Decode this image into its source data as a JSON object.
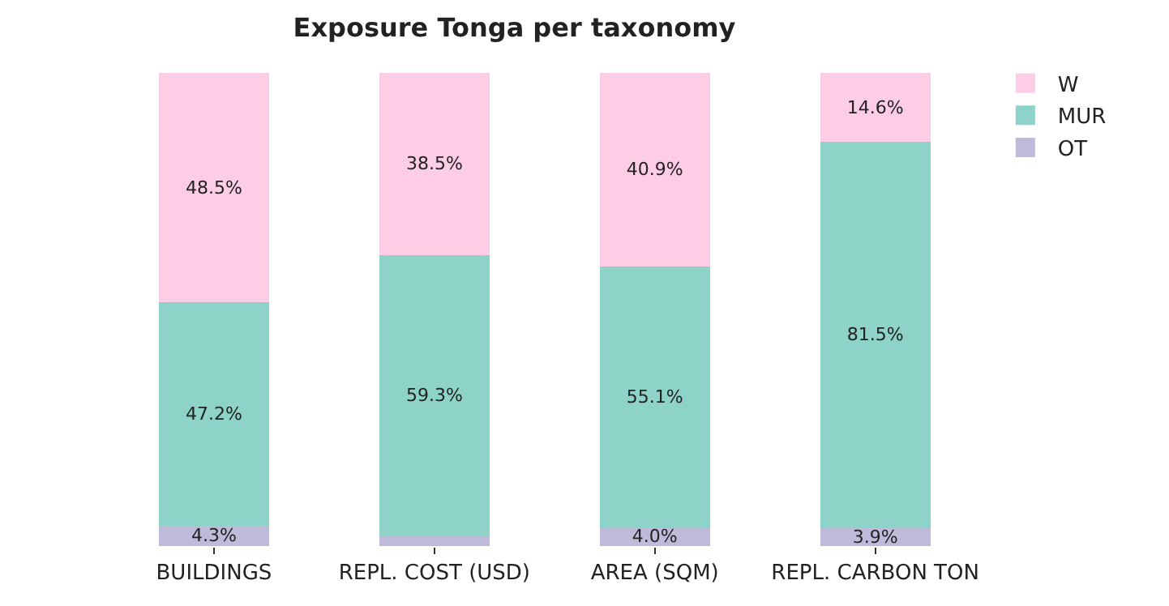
{
  "chart_data": {
    "type": "bar",
    "title": "Exposure Tonga per taxonomy",
    "categories": [
      "BUILDINGS",
      "REPL. COST (USD)",
      "AREA (SQM)",
      "REPL. CARBON TON"
    ],
    "stacked": true,
    "legend": "top right",
    "tick_labels": "x",
    "series": [
      {
        "name": "OT",
        "color": "#bebada",
        "values": [
          4.3,
          2.2,
          4.0,
          3.9
        ],
        "value_labels": [
          "4.3%",
          null,
          "4.0%",
          "3.9%"
        ]
      },
      {
        "name": "MUR",
        "color": "#8dd3c7",
        "values": [
          47.2,
          59.3,
          55.1,
          81.5
        ],
        "value_labels": [
          "47.2%",
          "59.3%",
          "55.1%",
          "81.5%"
        ]
      },
      {
        "name": "W",
        "color": "#fccde5",
        "values": [
          48.5,
          38.5,
          40.9,
          14.6
        ],
        "value_labels": [
          "48.5%",
          "38.5%",
          "40.9%",
          "14.6%"
        ]
      }
    ]
  }
}
